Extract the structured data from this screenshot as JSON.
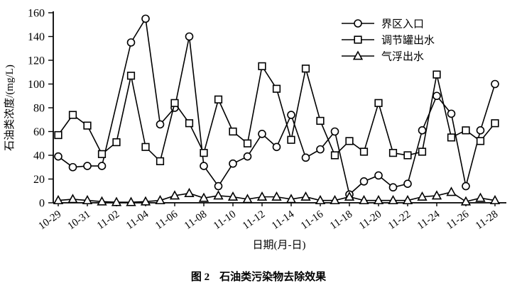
{
  "figure": {
    "caption_prefix": "图 2",
    "caption_title": "石油类污染物去除效果"
  },
  "chart_data": {
    "type": "line",
    "title": "",
    "xlabel": "日期(月-日)",
    "ylabel": "石油类浓度/(mg/L)",
    "ylim": [
      0,
      160
    ],
    "ytick_step": 20,
    "ytick_labels": [
      "0",
      "20",
      "40",
      "60",
      "80",
      "100",
      "120",
      "140",
      "160"
    ],
    "grid": false,
    "legend_position": "top-right-inside",
    "line_color": "#000000",
    "background_color": "#ffffff",
    "x_categories": [
      "10-29",
      "10-30",
      "10-31",
      "11-01",
      "11-02",
      "11-03",
      "11-04",
      "11-05",
      "11-06",
      "11-07",
      "11-08",
      "11-09",
      "11-10",
      "11-11",
      "11-12",
      "11-13",
      "11-14",
      "11-15",
      "11-16",
      "11-17",
      "11-18",
      "11-19",
      "11-20",
      "11-21",
      "11-22",
      "11-23",
      "11-24",
      "11-25",
      "11-26",
      "11-27",
      "11-28"
    ],
    "xtick_labels": [
      "10-29",
      "10-31",
      "11-02",
      "11-04",
      "11-06",
      "11-08",
      "11-10",
      "11-12",
      "11-14",
      "11-16",
      "11-18",
      "11-20",
      "11-22",
      "11-24",
      "11-26",
      "11-28"
    ],
    "series": [
      {
        "name": "界区入口",
        "marker": "circle",
        "values": [
          39,
          30,
          31,
          31,
          null,
          135,
          155,
          66,
          80,
          140,
          31,
          14,
          33,
          39,
          58,
          47,
          74,
          38,
          45,
          60,
          7,
          18,
          23,
          13,
          16,
          61,
          90,
          75,
          14,
          61,
          100
        ]
      },
      {
        "name": "调节罐出水",
        "marker": "square",
        "values": [
          57,
          74,
          65,
          41,
          51,
          107,
          47,
          35,
          84,
          67,
          42,
          87,
          60,
          50,
          115,
          96,
          53,
          113,
          69,
          40,
          52,
          43,
          84,
          42,
          40,
          43,
          108,
          55,
          61,
          52,
          67
        ]
      },
      {
        "name": "气浮出水",
        "marker": "triangle",
        "values": [
          2,
          3,
          2,
          1,
          0.5,
          0.5,
          1,
          2,
          6,
          8,
          4,
          6,
          5,
          3,
          5,
          5,
          3,
          5,
          2,
          2,
          5,
          2,
          2,
          2,
          2,
          5,
          6,
          9,
          1,
          4,
          2
        ]
      }
    ]
  }
}
